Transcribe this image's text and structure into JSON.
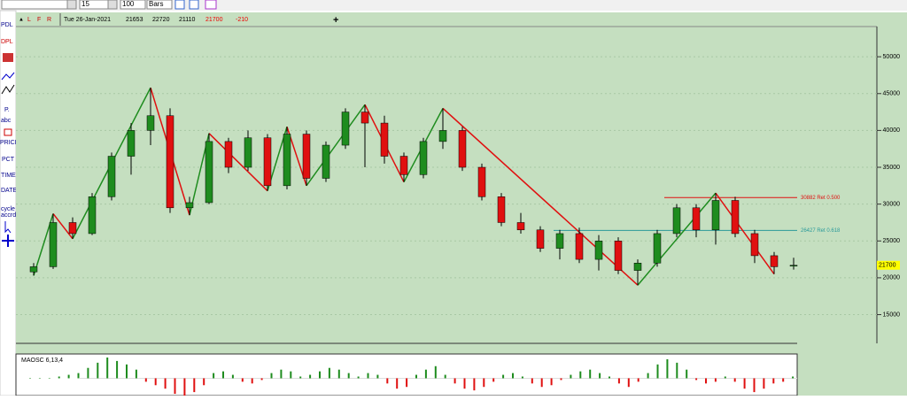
{
  "toolbar": {
    "interval": "15",
    "count": "100",
    "unit": "Bars"
  },
  "info_bar": {
    "flags": [
      "L",
      "F",
      "R"
    ],
    "date": "Tue 26-Jan-2021",
    "change": "-210"
  },
  "sidebar": [
    "PDL",
    "DPL",
    "P.",
    "abc",
    "PRICE",
    "PCT",
    "TIME",
    "DATE",
    "cycle",
    "accrd"
  ],
  "chart_data": {
    "type": "candlestick",
    "open": [
      20800,
      21500,
      27500,
      26000,
      31000,
      36500,
      40000,
      42000,
      29500,
      30200,
      38500,
      35000,
      39000,
      32500,
      39500,
      33500,
      38000,
      42500,
      41000,
      36500,
      34000,
      38500,
      40000,
      35000,
      31000,
      27500,
      26500,
      24000,
      26000,
      22500,
      25000,
      21000,
      22000,
      26000,
      29500,
      26500,
      30500,
      26000,
      23000,
      21653
    ],
    "high": [
      22000,
      28700,
      28200,
      31500,
      37000,
      41000,
      45800,
      43000,
      31000,
      39600,
      39000,
      40000,
      39500,
      40500,
      40000,
      38500,
      43000,
      43500,
      42000,
      37000,
      39000,
      43000,
      40500,
      35500,
      31500,
      28800,
      27000,
      26500,
      26800,
      25800,
      25500,
      22500,
      26500,
      30000,
      30000,
      31500,
      31000,
      26500,
      23500,
      22720
    ],
    "low": [
      20300,
      21200,
      25300,
      25800,
      30500,
      34000,
      38000,
      28800,
      28500,
      30000,
      34200,
      34500,
      31800,
      32000,
      32500,
      33000,
      37500,
      35000,
      35500,
      33000,
      33500,
      37500,
      34500,
      30500,
      27000,
      26000,
      23500,
      22500,
      22000,
      21000,
      20500,
      19000,
      21500,
      25500,
      25500,
      24500,
      25500,
      22000,
      20500,
      21110
    ],
    "close": [
      21500,
      27500,
      26000,
      31000,
      36500,
      40000,
      42000,
      29500,
      30200,
      38500,
      35000,
      39000,
      32500,
      39500,
      33500,
      38000,
      42500,
      41000,
      36500,
      34000,
      38500,
      40000,
      35000,
      31000,
      27500,
      26500,
      24000,
      26000,
      22500,
      25000,
      21000,
      22000,
      26000,
      29500,
      26500,
      30500,
      26000,
      23000,
      21500,
      21700
    ],
    "up_color": "#1e8c1e",
    "down_color": "#e01010",
    "ylim": [
      11100,
      54100
    ],
    "yticks": [
      15000,
      20000,
      25000,
      30000,
      35000,
      40000,
      45000,
      50000
    ],
    "retracements": [
      {
        "value": 30882,
        "label": "30882 Ret 0.500",
        "color": "#e01010"
      },
      {
        "value": 26427,
        "label": "26427 Ret 0.618",
        "color": "#2a9a9a"
      }
    ]
  },
  "oscillator": {
    "type": "bar",
    "title": "MAOSC 6,13,4",
    "ylim": [
      -10,
      12
    ],
    "values": [
      0,
      0,
      0,
      1,
      2,
      3,
      6,
      9,
      12,
      10,
      8,
      5,
      -2,
      -4,
      -6,
      -9,
      -10,
      -8,
      -4,
      3,
      4,
      2,
      -2,
      -3,
      -1,
      3,
      5,
      4,
      1,
      2,
      4,
      6,
      5,
      3,
      1,
      3,
      2,
      -3,
      -6,
      -5,
      2,
      5,
      7,
      2,
      -3,
      -6,
      -7,
      -5,
      -2,
      2,
      3,
      1,
      -3,
      -5,
      -4,
      -1,
      2,
      4,
      5,
      3,
      1,
      -3,
      -5,
      -2,
      3,
      8,
      11,
      9,
      5,
      -1,
      -3,
      -2,
      1,
      -2,
      -6,
      -8,
      -6,
      -3,
      -2,
      1
    ]
  }
}
